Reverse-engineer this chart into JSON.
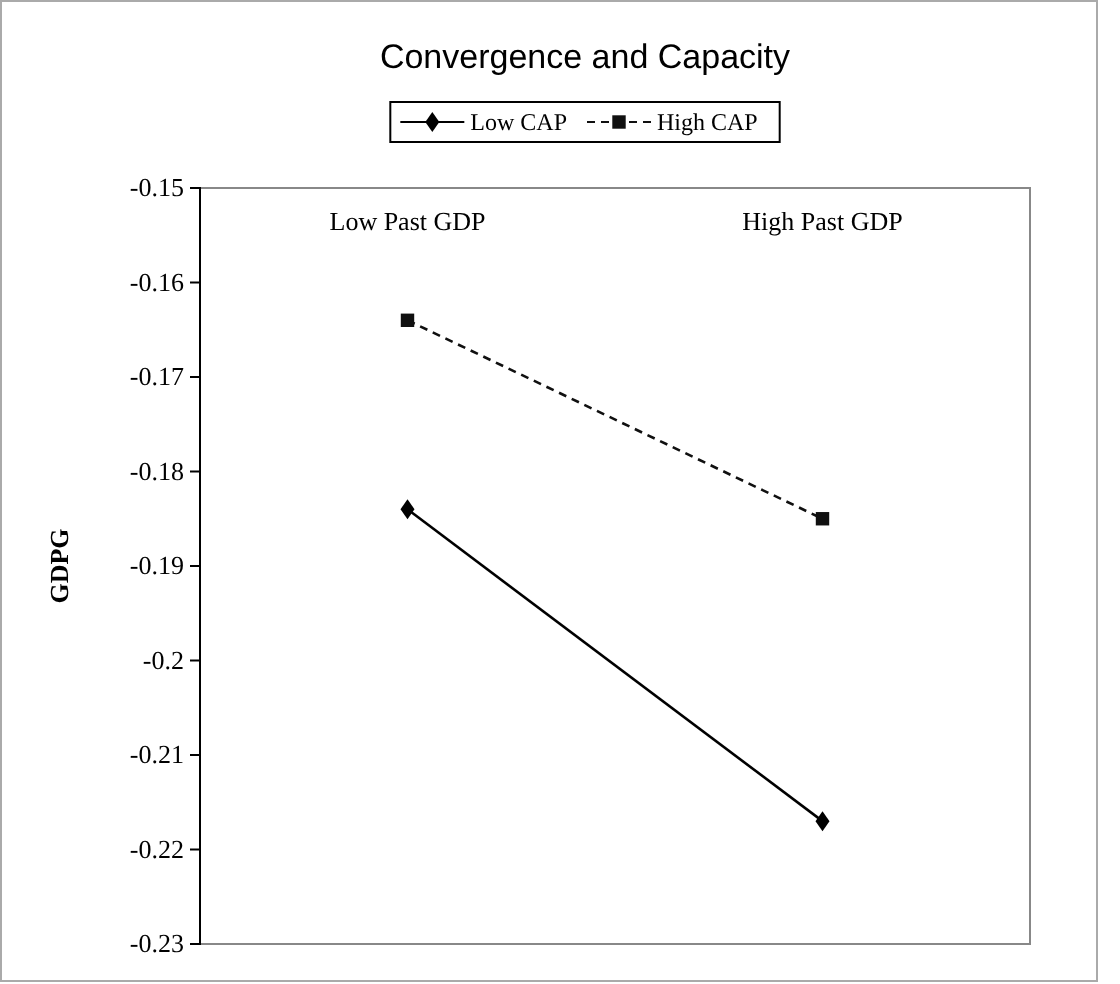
{
  "chart_data": {
    "type": "line",
    "title": "Convergence and Capacity",
    "ylabel": "GDPG",
    "categories": [
      "Low Past GDP",
      "High Past GDP"
    ],
    "series": [
      {
        "name": "Low CAP",
        "color": "#000000",
        "values": [
          -0.184,
          -0.217
        ],
        "marker": "diamond",
        "line_style": "solid"
      },
      {
        "name": "High CAP",
        "color": "#101010",
        "values": [
          -0.164,
          -0.185
        ],
        "marker": "square",
        "line_style": "dashed"
      }
    ],
    "ylim": [
      -0.23,
      -0.15
    ],
    "yticks": [
      -0.23,
      -0.22,
      -0.21,
      -0.2,
      -0.19,
      -0.18,
      -0.17,
      -0.16,
      -0.15
    ],
    "legend": "top",
    "grid": false
  }
}
